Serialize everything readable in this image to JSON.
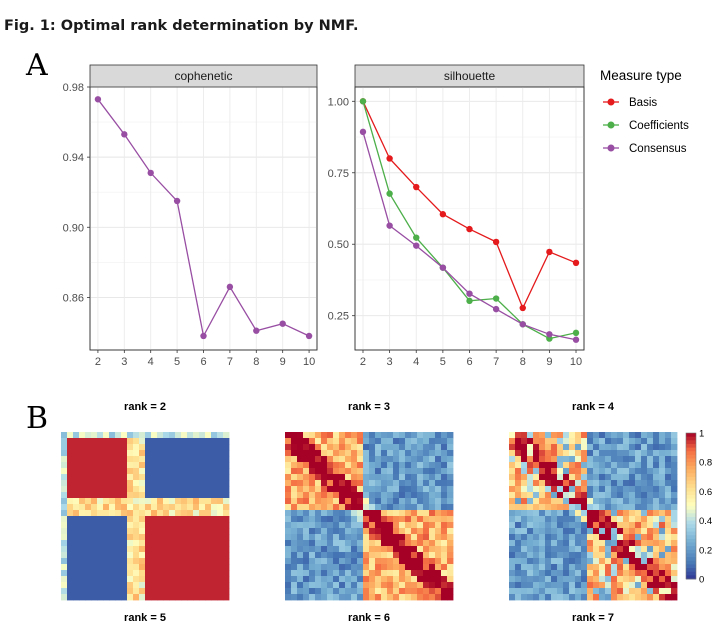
{
  "figure_title": "Fig. 1: Optimal rank determination by NMF.",
  "panel_a_label": "A",
  "panel_b_label": "B",
  "chart_data": [
    {
      "type": "line",
      "panel": "cophenetic",
      "x": [
        2,
        3,
        4,
        5,
        6,
        7,
        8,
        9,
        10
      ],
      "series": [
        {
          "name": "Consensus",
          "color": "#984ea3",
          "values": [
            0.973,
            0.953,
            0.931,
            0.915,
            0.838,
            0.866,
            0.841,
            0.845,
            0.838
          ]
        }
      ],
      "ylim": [
        0.83,
        0.98
      ],
      "yticks": [
        "0.98",
        "0.94",
        "0.90",
        "0.86"
      ],
      "xticks": [
        "2",
        "3",
        "4",
        "5",
        "6",
        "7",
        "8",
        "9",
        "10"
      ]
    },
    {
      "type": "line",
      "panel": "silhouette",
      "x": [
        2,
        3,
        4,
        5,
        6,
        7,
        8,
        9,
        10
      ],
      "series": [
        {
          "name": "Basis",
          "color": "#e41a1c",
          "values": [
            1.0,
            0.8,
            0.7,
            0.605,
            0.553,
            0.508,
            0.277,
            0.473,
            0.435
          ]
        },
        {
          "name": "Coefficients",
          "color": "#4daf4a",
          "values": [
            1.0,
            0.677,
            0.523,
            0.418,
            0.302,
            0.31,
            0.22,
            0.17,
            0.19
          ]
        },
        {
          "name": "Consensus",
          "color": "#984ea3",
          "values": [
            0.893,
            0.565,
            0.495,
            0.418,
            0.327,
            0.273,
            0.22,
            0.185,
            0.166
          ]
        }
      ],
      "ylim": [
        0.13,
        1.05
      ],
      "yticks": [
        "1.00",
        "0.75",
        "0.50",
        "0.25"
      ],
      "xticks": [
        "2",
        "3",
        "4",
        "5",
        "6",
        "7",
        "8",
        "9",
        "10"
      ]
    },
    {
      "type": "heatmap",
      "panels": [
        {
          "label": "rank =  2",
          "rank": 2
        },
        {
          "label": "rank =  3",
          "rank": 3
        },
        {
          "label": "rank =  4",
          "rank": 4
        },
        {
          "label": "rank =  5",
          "rank": 5
        },
        {
          "label": "rank =  6",
          "rank": 6
        },
        {
          "label": "rank =  7",
          "rank": 7
        }
      ],
      "colorbar": {
        "min": 0,
        "max": 1,
        "ticks": [
          "1",
          "0.8",
          "0.6",
          "0.4",
          "0.2",
          "0"
        ]
      }
    }
  ],
  "legend": {
    "title": "Measure type",
    "items": [
      {
        "label": "Basis",
        "color": "#e41a1c"
      },
      {
        "label": "Coefficients",
        "color": "#4daf4a"
      },
      {
        "label": "Consensus",
        "color": "#984ea3"
      }
    ]
  }
}
